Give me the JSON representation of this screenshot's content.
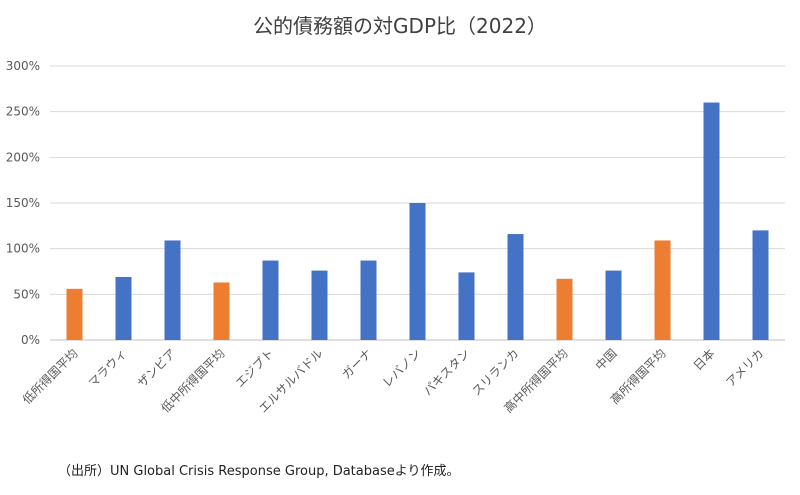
{
  "title": "公的債務額の対GDP比（2022）",
  "source_note": "（出所）UN Global Crisis Response Group, Databaseより作成。",
  "colors": {
    "bar_default": "#4472C4",
    "bar_income_group": "#ED7D31",
    "grid": "#D9D9D9",
    "axis": "#BFBFBF"
  },
  "chart_data": {
    "type": "bar",
    "title": "公的債務額の対GDP比（2022）",
    "xlabel": "",
    "ylabel": "",
    "ylim": [
      0,
      300
    ],
    "yticks": [
      0,
      50,
      100,
      150,
      200,
      250,
      300
    ],
    "ytick_labels": [
      "0%",
      "50%",
      "100%",
      "150%",
      "200%",
      "250%",
      "300%"
    ],
    "grid": true,
    "legend": "none",
    "categories": [
      "低所得国平均",
      "マラウィ",
      "ザンビア",
      "低中所得国平均",
      "エジプト",
      "エルサルバドル",
      "ガーナ",
      "レバノン",
      "パキスタン",
      "スリランカ",
      "高中所得国平均",
      "中国",
      "高所得国平均",
      "日本",
      "アメリカ"
    ],
    "values": [
      56,
      69,
      109,
      63,
      87,
      76,
      87,
      150,
      74,
      116,
      67,
      76,
      109,
      260,
      120
    ],
    "bar_colors": [
      "#ED7D31",
      "#4472C4",
      "#4472C4",
      "#ED7D31",
      "#4472C4",
      "#4472C4",
      "#4472C4",
      "#4472C4",
      "#4472C4",
      "#4472C4",
      "#ED7D31",
      "#4472C4",
      "#ED7D31",
      "#4472C4",
      "#4472C4"
    ]
  }
}
